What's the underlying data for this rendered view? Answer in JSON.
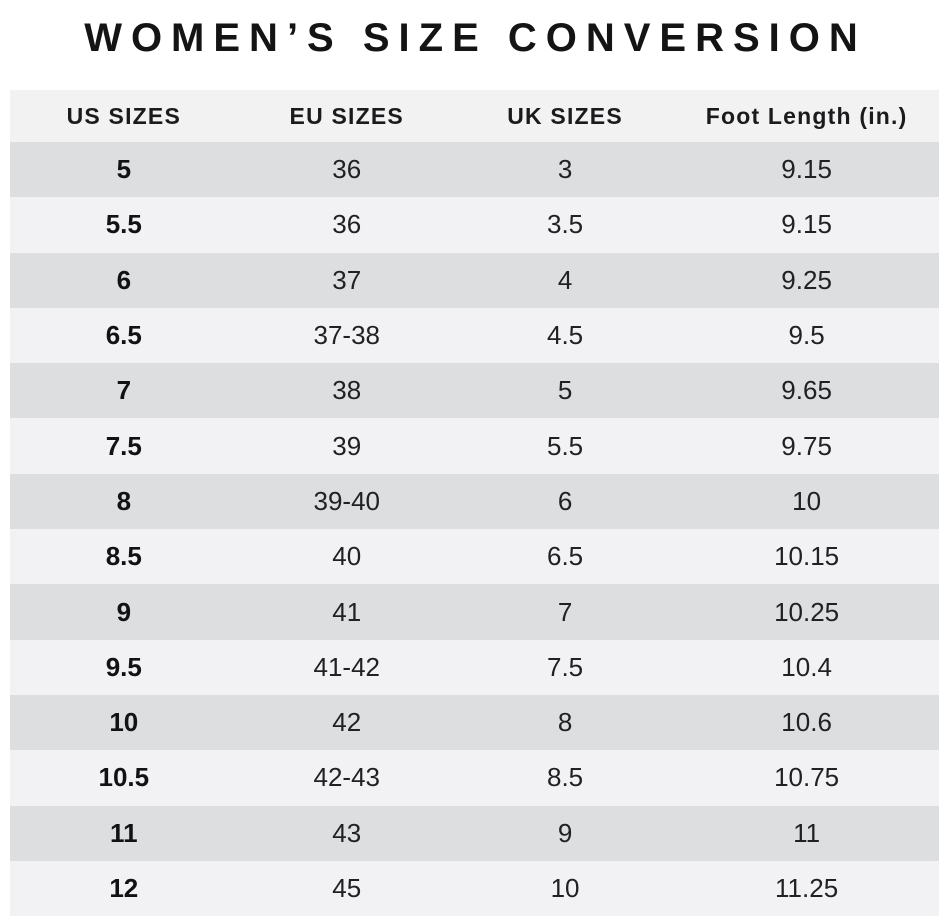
{
  "chart_data": {
    "type": "table",
    "title": "WOMEN’S SIZE CONVERSION",
    "columns": [
      "US SIZES",
      "EU SIZES",
      "UK SIZES",
      "Foot Length (in.)"
    ],
    "rows": [
      [
        "5",
        "36",
        "3",
        "9.15"
      ],
      [
        "5.5",
        "36",
        "3.5",
        "9.15"
      ],
      [
        "6",
        "37",
        "4",
        "9.25"
      ],
      [
        "6.5",
        "37-38",
        "4.5",
        "9.5"
      ],
      [
        "7",
        "38",
        "5",
        "9.65"
      ],
      [
        "7.5",
        "39",
        "5.5",
        "9.75"
      ],
      [
        "8",
        "39-40",
        "6",
        "10"
      ],
      [
        "8.5",
        "40",
        "6.5",
        "10.15"
      ],
      [
        "9",
        "41",
        "7",
        "10.25"
      ],
      [
        "9.5",
        "41-42",
        "7.5",
        "10.4"
      ],
      [
        "10",
        "42",
        "8",
        "10.6"
      ],
      [
        "10.5",
        "42-43",
        "8.5",
        "10.75"
      ],
      [
        "11",
        "43",
        "9",
        "11"
      ],
      [
        "12",
        "45",
        "10",
        "11.25"
      ]
    ],
    "layout": {
      "legend": "none",
      "grid": "off",
      "row_striping": "alternating"
    }
  },
  "colors": {
    "background": "#ffffff",
    "header_row_bg": "#f2f2f3",
    "row_dark_bg": "#dcdee0",
    "row_light_bg": "#f2f2f4",
    "title_text": "#141414",
    "body_text": "#212123"
  }
}
